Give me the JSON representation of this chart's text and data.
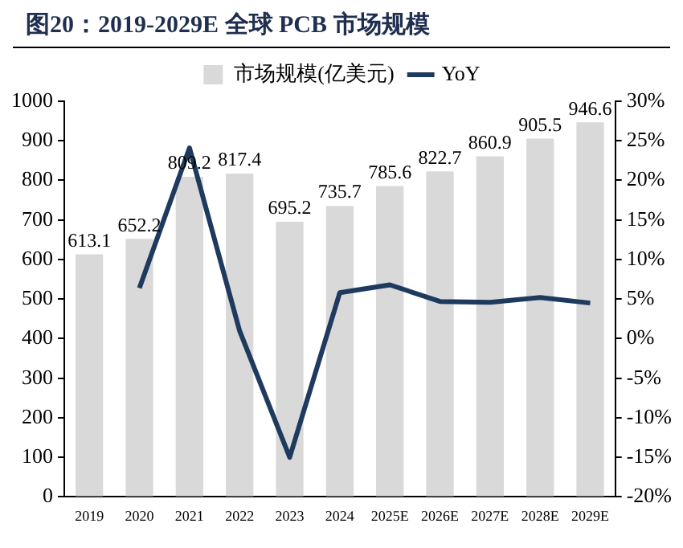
{
  "chart_data": {
    "type": "bar",
    "title": "图20：2019-2029E 全球 PCB 市场规模",
    "categories": [
      "2019",
      "2020",
      "2021",
      "2022",
      "2023",
      "2024",
      "2025E",
      "2026E",
      "2027E",
      "2028E",
      "2029E"
    ],
    "series": [
      {
        "name": "市场规模(亿美元)",
        "color": "#d9d9d9",
        "values": [
          613.1,
          652.2,
          809.2,
          817.4,
          695.2,
          735.7,
          785.6,
          822.7,
          860.9,
          905.5,
          946.6
        ],
        "value_labels": [
          "613.1",
          "652.2",
          "809.2",
          "817.4",
          "695.2",
          "735.7",
          "785.6",
          "822.7",
          "860.9",
          "905.5",
          "946.6"
        ]
      },
      {
        "name": "YoY",
        "type": "line",
        "axis": "y2",
        "color": "#1f3a5f",
        "values": [
          null,
          6.4,
          24.1,
          1.0,
          -15.0,
          5.8,
          6.8,
          4.7,
          4.6,
          5.2,
          4.5
        ]
      }
    ],
    "ylim": [
      0,
      1000
    ],
    "yticks": [
      0,
      100,
      200,
      300,
      400,
      500,
      600,
      700,
      800,
      900,
      1000
    ],
    "y2lim": [
      -20,
      30
    ],
    "y2ticks": [
      {
        "value": -20,
        "label": "-20%"
      },
      {
        "value": -15,
        "label": "-15%"
      },
      {
        "value": -10,
        "label": "-10%"
      },
      {
        "value": -5,
        "label": "-5%"
      },
      {
        "value": 0,
        "label": "0%"
      },
      {
        "value": 5,
        "label": "5%"
      },
      {
        "value": 10,
        "label": "10%"
      },
      {
        "value": 15,
        "label": "15%"
      },
      {
        "value": 20,
        "label": "20%"
      },
      {
        "value": 25,
        "label": "25%"
      },
      {
        "value": 30,
        "label": "30%"
      }
    ],
    "grid": false,
    "legend": "top",
    "marker": "none",
    "line_style": "solid"
  }
}
